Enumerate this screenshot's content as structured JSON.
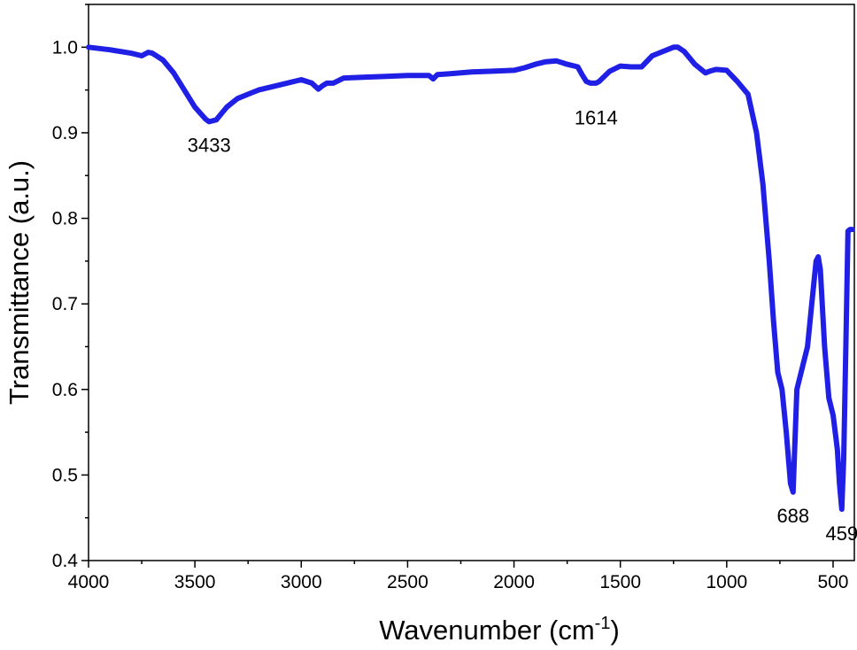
{
  "chart_data": {
    "type": "line",
    "xlabel": "Wavenumber (cm",
    "xlabel_superscript": "-1",
    "xlabel_suffix": ")",
    "ylabel": "Transmittance (a.u.)",
    "xlim": [
      4000,
      400
    ],
    "ylim": [
      0.4,
      1.05
    ],
    "x_ticks": [
      4000,
      3500,
      3000,
      2500,
      2000,
      1500,
      1000,
      500
    ],
    "x_tick_labels": [
      "4000",
      "3500",
      "3000",
      "2500",
      "2000",
      "1500",
      "1000",
      "500"
    ],
    "y_ticks": [
      0.4,
      0.5,
      0.6,
      0.7,
      0.8,
      0.9,
      1.0
    ],
    "y_tick_labels": [
      "0.4",
      "0.5",
      "0.6",
      "0.7",
      "0.8",
      "0.9",
      "1.0"
    ],
    "grid": false,
    "legend": "none",
    "series_color": "#1f1fe6",
    "series": [
      {
        "x": [
          4000,
          3900,
          3800,
          3750,
          3720,
          3700,
          3650,
          3600,
          3550,
          3500,
          3450,
          3433,
          3400,
          3350,
          3300,
          3250,
          3200,
          3100,
          3000,
          2950,
          2920,
          2900,
          2880,
          2850,
          2800,
          2700,
          2600,
          2500,
          2400,
          2380,
          2360,
          2300,
          2200,
          2100,
          2000,
          1950,
          1900,
          1850,
          1800,
          1750,
          1700,
          1680,
          1660,
          1640,
          1614,
          1600,
          1550,
          1500,
          1450,
          1400,
          1350,
          1300,
          1250,
          1230,
          1200,
          1150,
          1100,
          1080,
          1050,
          1000,
          950,
          900,
          860,
          830,
          800,
          780,
          760,
          750,
          740,
          720,
          700,
          688,
          670,
          650,
          620,
          600,
          580,
          570,
          560,
          540,
          520,
          500,
          480,
          470,
          459,
          450,
          440,
          430,
          420,
          410
        ],
        "y": [
          1.0,
          0.997,
          0.993,
          0.99,
          0.994,
          0.993,
          0.985,
          0.97,
          0.95,
          0.93,
          0.916,
          0.913,
          0.915,
          0.93,
          0.94,
          0.945,
          0.95,
          0.956,
          0.962,
          0.958,
          0.951,
          0.955,
          0.958,
          0.958,
          0.964,
          0.965,
          0.966,
          0.967,
          0.967,
          0.963,
          0.968,
          0.969,
          0.971,
          0.972,
          0.973,
          0.976,
          0.98,
          0.983,
          0.984,
          0.98,
          0.977,
          0.968,
          0.96,
          0.958,
          0.958,
          0.96,
          0.972,
          0.978,
          0.977,
          0.977,
          0.99,
          0.995,
          1.0,
          1.0,
          0.995,
          0.98,
          0.97,
          0.972,
          0.974,
          0.973,
          0.96,
          0.945,
          0.9,
          0.84,
          0.75,
          0.68,
          0.62,
          0.61,
          0.6,
          0.55,
          0.49,
          0.48,
          0.6,
          0.62,
          0.65,
          0.7,
          0.75,
          0.755,
          0.74,
          0.65,
          0.59,
          0.57,
          0.53,
          0.49,
          0.46,
          0.52,
          0.65,
          0.785,
          0.787,
          0.787
        ]
      }
    ],
    "annotations": [
      {
        "text": "3433",
        "x": 3433,
        "y": 0.886
      },
      {
        "text": "1614",
        "x": 1614,
        "y": 0.918
      },
      {
        "text": "688",
        "x": 688,
        "y": 0.453
      },
      {
        "text": "459",
        "x": 459,
        "y": 0.432
      }
    ]
  }
}
